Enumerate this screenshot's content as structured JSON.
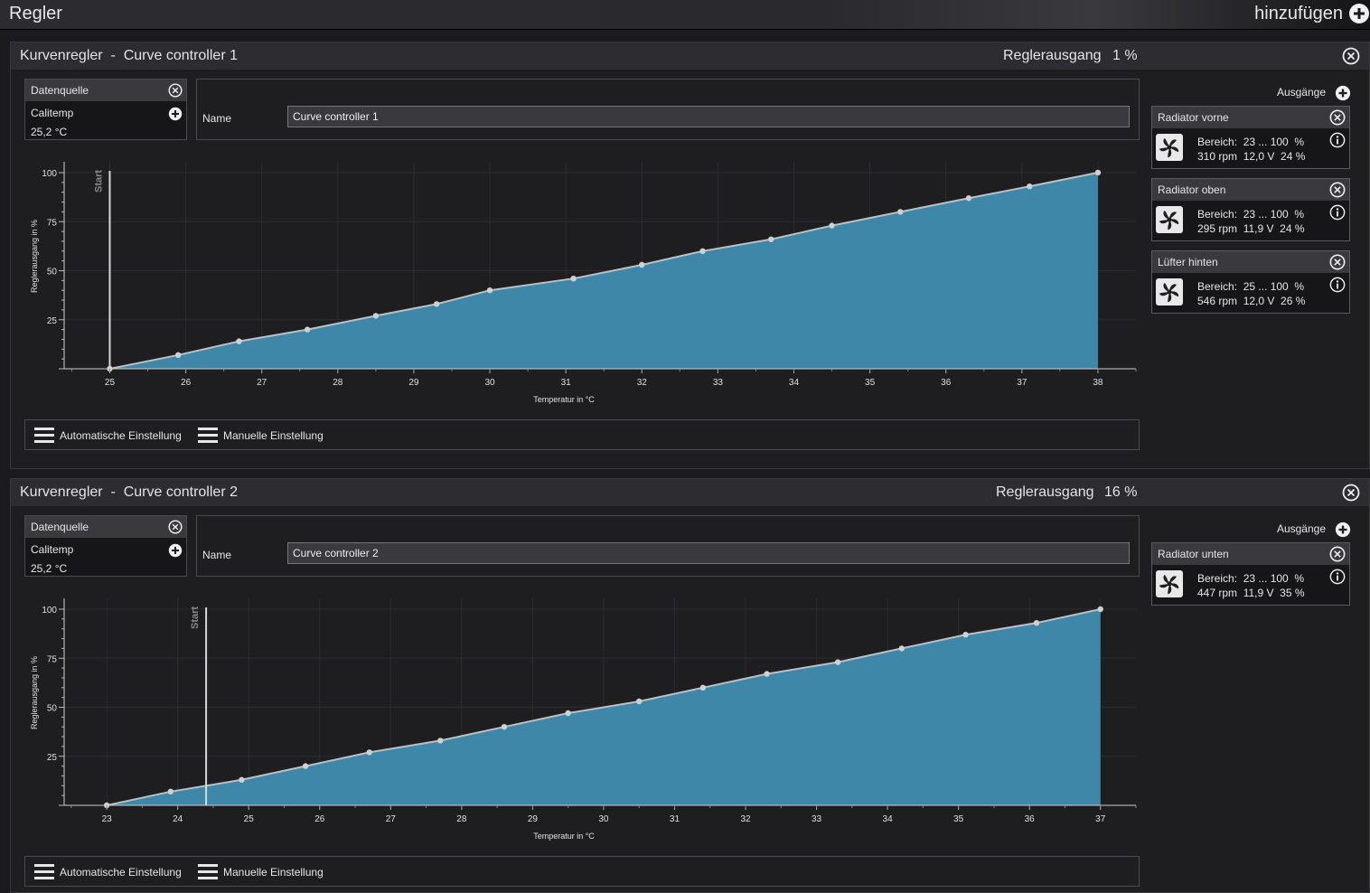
{
  "header": {
    "title": "Regler",
    "add_label": "hinzufügen"
  },
  "controllers": [
    {
      "title": "Kurvenregler  -  Curve controller 1",
      "output_label": "Reglerausgang",
      "output_value": "1 %",
      "source": {
        "head": "Datenquelle",
        "name": "Calitemp",
        "value": "25,2 °C"
      },
      "name_label": "Name",
      "name_value": "Curve controller 1",
      "outputs_label": "Ausgänge",
      "outputs": [
        {
          "name": "Radiator vorne",
          "line1": "Bereich:  23 ... 100  %",
          "line2": "310 rpm  12,0 V  24 %"
        },
        {
          "name": "Radiator oben",
          "line1": "Bereich:  23 ... 100  %",
          "line2": "295 rpm  11,9 V  24 %"
        },
        {
          "name": "Lüfter hinten",
          "line1": "Bereich:  25 ... 100  %",
          "line2": "546 rpm  12,0 V  26 %"
        }
      ],
      "buttons": {
        "auto": "Automatische Einstellung",
        "manual": "Manuelle Einstellung"
      },
      "chart_data": {
        "type": "area",
        "xlabel": "Temperatur in °C",
        "ylabel": "Reglerausgang in %",
        "xlim": [
          24.4,
          38.5
        ],
        "ylim": [
          0,
          100
        ],
        "x_ticks": [
          "25",
          "26",
          "27",
          "28",
          "29",
          "30",
          "31",
          "32",
          "33",
          "34",
          "35",
          "36",
          "37",
          "38"
        ],
        "y_ticks": [
          "100",
          "75",
          "50",
          "25"
        ],
        "start_marker": {
          "label": "Start",
          "x": 25
        },
        "series": [
          {
            "x": [
              25,
              25.9,
              26.7,
              27.6,
              28.5,
              29.3,
              30.0,
              31.1,
              32.0,
              32.8,
              33.7,
              34.5,
              35.4,
              36.3,
              37.1,
              38
            ],
            "y": [
              0,
              7,
              14,
              20,
              27,
              33,
              40,
              46,
              53,
              60,
              66,
              73,
              80,
              87,
              93,
              100
            ]
          }
        ]
      }
    },
    {
      "title": "Kurvenregler  -  Curve controller 2",
      "output_label": "Reglerausgang",
      "output_value": "16 %",
      "source": {
        "head": "Datenquelle",
        "name": "Calitemp",
        "value": "25,2 °C"
      },
      "name_label": "Name",
      "name_value": "Curve controller 2",
      "outputs_label": "Ausgänge",
      "outputs": [
        {
          "name": "Radiator unten",
          "line1": "Bereich:  23 ... 100  %",
          "line2": "447 rpm  11,9 V  35 %"
        }
      ],
      "buttons": {
        "auto": "Automatische Einstellung",
        "manual": "Manuelle Einstellung"
      },
      "chart_data": {
        "type": "area",
        "xlabel": "Temperatur in °C",
        "ylabel": "Reglerausgang in %",
        "xlim": [
          22.4,
          37.5
        ],
        "ylim": [
          0,
          100
        ],
        "x_ticks": [
          "23",
          "24",
          "25",
          "26",
          "27",
          "28",
          "29",
          "30",
          "31",
          "32",
          "33",
          "34",
          "35",
          "36",
          "37"
        ],
        "y_ticks": [
          "100",
          "75",
          "50",
          "25"
        ],
        "start_marker": {
          "label": "Start",
          "x": 24.4
        },
        "series": [
          {
            "x": [
              23,
              23.9,
              24.9,
              25.8,
              26.7,
              27.7,
              28.6,
              29.5,
              30.5,
              31.4,
              32.3,
              33.3,
              34.2,
              35.1,
              36.1,
              37
            ],
            "y": [
              0,
              7,
              13,
              20,
              27,
              33,
              40,
              47,
              53,
              60,
              67,
              73,
              80,
              87,
              93,
              100
            ]
          }
        ]
      }
    }
  ],
  "colors": {
    "area_fill": "#3e87a9",
    "line": "#bfbfbf",
    "background": "#1e1e20"
  }
}
